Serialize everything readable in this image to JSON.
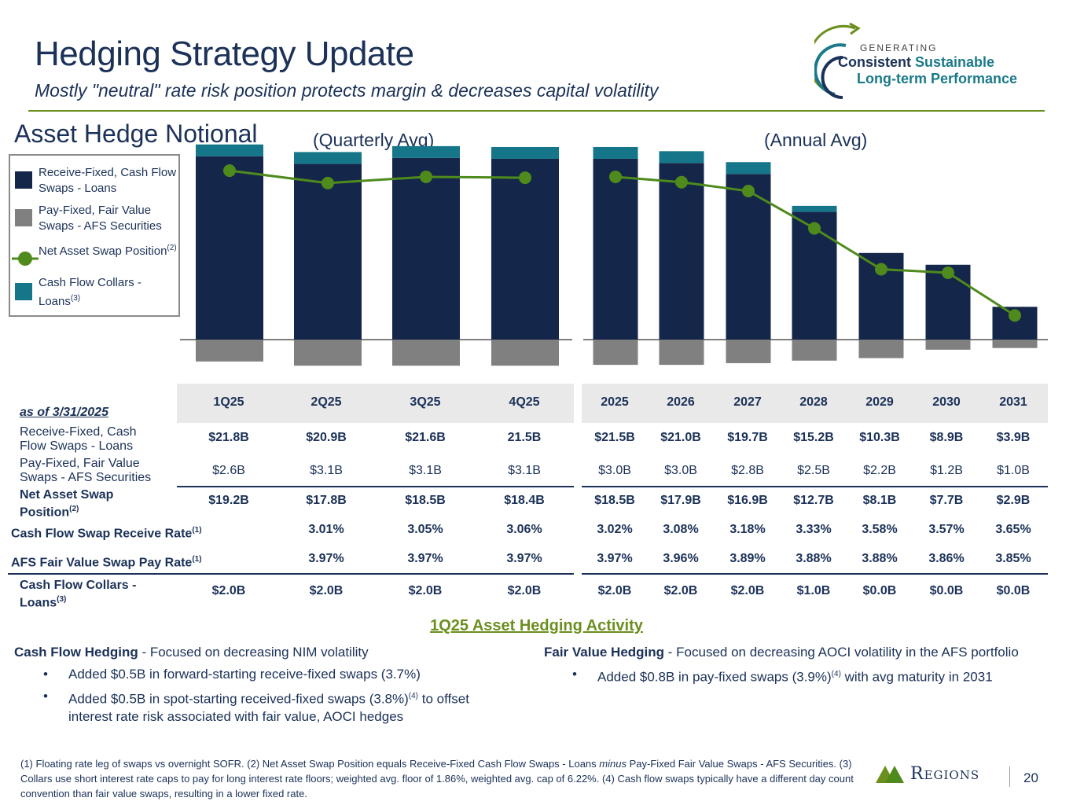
{
  "header": {
    "title": "Hedging Strategy Update",
    "subtitle": "Mostly \"neutral\" rate risk position protects margin & decreases capital volatility",
    "logo_line1": "GENERATING",
    "logo_line2a": "Consistent",
    "logo_line2b": "Sustainable",
    "logo_line3": "Long-term Performance"
  },
  "section_heading": "Asset Hedge Notional",
  "quarterly_label": "(Quarterly Avg)",
  "annual_label": "(Annual Avg)",
  "legend": {
    "items": [
      {
        "label": "Receive-Fixed, Cash Flow Swaps - Loans",
        "sup": ""
      },
      {
        "label": "Pay-Fixed, Fair Value Swaps - AFS Securities",
        "sup": ""
      },
      {
        "label": "Net Asset Swap Position",
        "sup": "(2)"
      },
      {
        "label": "Cash Flow Collars - Loans",
        "sup": "(3)"
      }
    ]
  },
  "colors": {
    "receive_fixed": "#14264a",
    "pay_fixed": "#808080",
    "net": "#4e8a1c",
    "collars": "#147688",
    "accent": "#6b8f1f"
  },
  "chart_data": {
    "type": "bar",
    "title": "Asset Hedge Notional",
    "unit": "$B",
    "categories": [
      "1Q25",
      "2Q25",
      "3Q25",
      "4Q25",
      "2025",
      "2026",
      "2027",
      "2028",
      "2029",
      "2030",
      "2031"
    ],
    "groups": [
      {
        "label": "(Quarterly Avg)",
        "categories": [
          "1Q25",
          "2Q25",
          "3Q25",
          "4Q25"
        ]
      },
      {
        "label": "(Annual Avg)",
        "categories": [
          "2025",
          "2026",
          "2027",
          "2028",
          "2029",
          "2030",
          "2031"
        ]
      }
    ],
    "series": [
      {
        "name": "Receive-Fixed, Cash Flow Swaps - Loans",
        "values": [
          21.8,
          20.9,
          21.6,
          21.5,
          21.5,
          21.0,
          19.7,
          15.2,
          10.3,
          8.9,
          3.9
        ]
      },
      {
        "name": "Pay-Fixed, Fair Value Swaps - AFS Securities",
        "values": [
          -2.6,
          -3.1,
          -3.1,
          -3.1,
          -3.0,
          -3.0,
          -2.8,
          -2.5,
          -2.2,
          -1.2,
          -1.0
        ]
      },
      {
        "name": "Cash Flow Collars - Loans",
        "values": [
          2.0,
          2.0,
          2.0,
          2.0,
          2.0,
          2.0,
          2.0,
          1.0,
          0.0,
          0.0,
          0.0
        ]
      },
      {
        "name": "Net Asset Swap Position",
        "values": [
          19.2,
          17.8,
          18.5,
          18.4,
          18.5,
          17.9,
          16.9,
          12.7,
          8.1,
          7.7,
          2.9
        ]
      }
    ]
  },
  "table": {
    "as_of": "as of 3/31/2025",
    "headers": [
      "1Q25",
      "2Q25",
      "3Q25",
      "4Q25",
      "2025",
      "2026",
      "2027",
      "2028",
      "2029",
      "2030",
      "2031"
    ],
    "rows": [
      {
        "label": "Receive-Fixed, Cash Flow Swaps - Loans",
        "label_sup": "",
        "values": [
          "$21.8B",
          "$20.9B",
          "$21.6B",
          "21.5B",
          "$21.5B",
          "$21.0B",
          "$19.7B",
          "$15.2B",
          "$10.3B",
          "$8.9B",
          "$3.9B"
        ]
      },
      {
        "label": "Pay-Fixed, Fair Value Swaps - AFS Securities",
        "label_sup": "",
        "values": [
          "$2.6B",
          "$3.1B",
          "$3.1B",
          "$3.1B",
          "$3.0B",
          "$3.0B",
          "$2.8B",
          "$2.5B",
          "$2.2B",
          "$1.2B",
          "$1.0B"
        ]
      },
      {
        "label": "Net Asset Swap Position",
        "label_sup": "(2)",
        "values": [
          "$19.2B",
          "$17.8B",
          "$18.5B",
          "$18.4B",
          "$18.5B",
          "$17.9B",
          "$16.9B",
          "$12.7B",
          "$8.1B",
          "$7.7B",
          "$2.9B"
        ]
      },
      {
        "label": "Cash Flow Swap Receive Rate",
        "label_sup": "(1)",
        "values": [
          "",
          "3.01%",
          "3.05%",
          "3.06%",
          "3.02%",
          "3.08%",
          "3.18%",
          "3.33%",
          "3.58%",
          "3.57%",
          "3.65%"
        ]
      },
      {
        "label": "AFS Fair Value Swap Pay Rate",
        "label_sup": "(1)",
        "values": [
          "",
          "3.97%",
          "3.97%",
          "3.97%",
          "3.97%",
          "3.96%",
          "3.89%",
          "3.88%",
          "3.88%",
          "3.86%",
          "3.85%"
        ]
      },
      {
        "label": "Cash Flow Collars - Loans",
        "label_sup": "(3)",
        "values": [
          "$2.0B",
          "$2.0B",
          "$2.0B",
          "$2.0B",
          "$2.0B",
          "$2.0B",
          "$2.0B",
          "$1.0B",
          "$0.0B",
          "$0.0B",
          "$0.0B"
        ]
      }
    ]
  },
  "activity": {
    "title": "1Q25 Asset Hedging Activity",
    "left_heading": "Cash Flow Hedging",
    "left_desc": " - Focused on decreasing NIM volatility",
    "left_bullets": [
      {
        "text": "Added $0.5B in forward-starting receive-fixed swaps (3.7%)",
        "sup": "",
        "after": ""
      },
      {
        "text": "Added $0.5B in spot-starting received-fixed swaps (3.8%)",
        "sup": "(4)",
        "after": " to offset interest rate risk associated with fair value, AOCI hedges"
      }
    ],
    "right_heading": "Fair Value Hedging",
    "right_desc": " - Focused on decreasing AOCI volatility in the AFS portfolio",
    "right_bullets": [
      {
        "text": "Added $0.8B in pay-fixed swaps (3.9%)",
        "sup": "(4)",
        "after": " with avg maturity in 2031"
      }
    ]
  },
  "footnote": {
    "part1": "(1) Floating rate leg of swaps vs overnight SOFR. (2) Net Asset Swap Position equals Receive-Fixed Cash Flow Swaps - Loans ",
    "minus": "minus",
    "part2": " Pay-Fixed Fair Value Swaps - AFS Securities. (3) Collars use short interest rate caps to pay for long interest rate floors; weighted avg. floor of 1.86%, weighted avg. cap of 6.22%. (4) Cash flow swaps typically have a different day count convention than fair value swaps, resulting in a lower fixed rate."
  },
  "footer": {
    "brand": "Regions",
    "page_number": "20"
  }
}
